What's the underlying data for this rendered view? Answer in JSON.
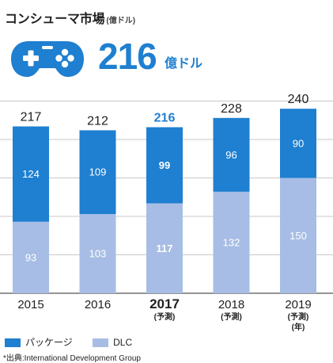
{
  "header": {
    "title": "コンシューマ市場",
    "unit": "(億ドル)"
  },
  "hero": {
    "icon": "gamepad-icon",
    "value": "216",
    "unit": "億ドル"
  },
  "chart_data": {
    "type": "bar",
    "stacked": true,
    "categories": [
      "2015",
      "2016",
      "2017",
      "2018",
      "2019"
    ],
    "category_notes": [
      "",
      "",
      "(予測)",
      "(予測)",
      "(予測)"
    ],
    "extra_note": "(年)",
    "totals": [
      217,
      212,
      216,
      228,
      240
    ],
    "series": [
      {
        "name": "DLC",
        "values": [
          93,
          103,
          117,
          132,
          150
        ],
        "color": "#a7bde5"
      },
      {
        "name": "パッケージ",
        "values": [
          124,
          109,
          99,
          96,
          90
        ],
        "color": "#1f7fd0"
      }
    ],
    "highlight_category": "2017",
    "highlight_color": "#1f7fd0",
    "ylim": [
      0,
      250
    ],
    "grid": true,
    "legend": "bottom-left",
    "legend_order": [
      "パッケージ",
      "DLC"
    ]
  },
  "source_note": "*出典:International Development Group",
  "colors": {
    "brand_blue": "#1f7fd0",
    "light_blue": "#a7bde5",
    "grid": "#c9c9c9",
    "text": "#222222"
  }
}
